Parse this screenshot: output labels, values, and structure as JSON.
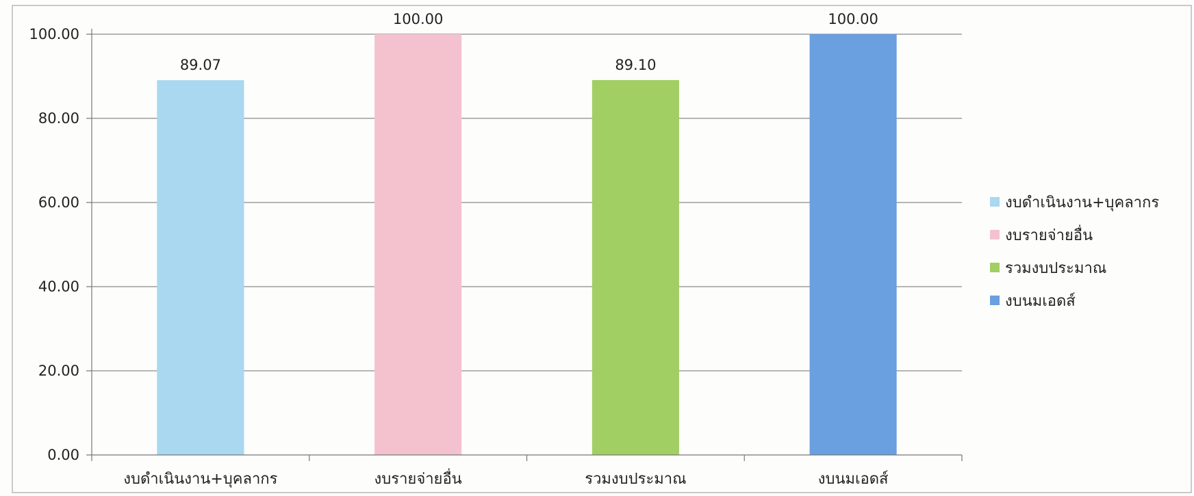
{
  "chart_data": {
    "type": "bar",
    "title": "",
    "xlabel": "",
    "ylabel": "",
    "categories": [
      "งบดำเนินงาน+บุคลากร",
      "งบรายจ่ายอื่น",
      "รวมงบประมาณ",
      "งบนมเอดส์"
    ],
    "values": [
      89.07,
      100.0,
      89.1,
      100.0
    ],
    "value_labels": [
      "89.07",
      "100.00",
      "89.10",
      "100.00"
    ],
    "colors": [
      "#a9d8f0",
      "#f4c2cf",
      "#a2cf63",
      "#6a9fe0"
    ],
    "ylim": [
      0,
      100
    ],
    "yticks": [
      0,
      20,
      40,
      60,
      80,
      100
    ],
    "ytick_labels": [
      "0.00",
      "20.00",
      "40.00",
      "60.00",
      "80.00",
      "100.00"
    ],
    "grid": true,
    "legend_position": "right",
    "legend": [
      "งบดำเนินงาน+บุคลากร",
      "งบรายจ่ายอื่น",
      "รวมงบประมาณ",
      "งบนมเอดส์"
    ]
  }
}
